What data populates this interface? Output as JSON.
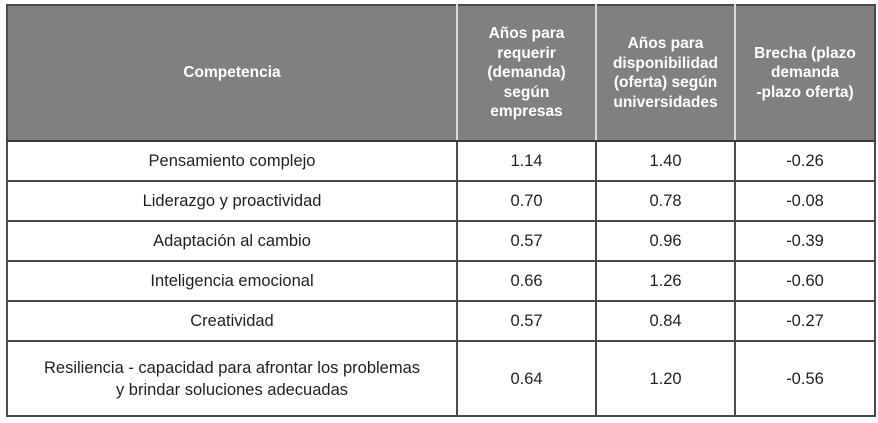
{
  "table": {
    "headers": [
      "Competencia",
      "Años para requerir (demanda) según empresas",
      "Años para disponibilidad (oferta) según universidades",
      "Brecha (plazo demanda -plazo oferta)"
    ],
    "header_lines": [
      [
        "Competencia"
      ],
      [
        "Años para",
        "requerir",
        "(demanda)",
        "según",
        "empresas"
      ],
      [
        "Años para",
        "disponibilidad",
        "(oferta) según",
        "universidades"
      ],
      [
        "Brecha (plazo",
        "demanda",
        "-plazo oferta)"
      ]
    ],
    "rows": [
      {
        "competencia": "Pensamiento complejo",
        "demanda": "1.14",
        "oferta": "1.40",
        "brecha": "-0.26"
      },
      {
        "competencia": "Liderazgo y proactividad",
        "demanda": "0.70",
        "oferta": "0.78",
        "brecha": "-0.08"
      },
      {
        "competencia": "Adaptación al cambio",
        "demanda": "0.57",
        "oferta": "0.96",
        "brecha": "-0.39"
      },
      {
        "competencia": "Inteligencia emocional",
        "demanda": "0.66",
        "oferta": "1.26",
        "brecha": "-0.60"
      },
      {
        "competencia": "Creatividad",
        "demanda": "0.57",
        "oferta": "0.84",
        "brecha": "-0.27"
      },
      {
        "competencia": "Resiliencia - capacidad para afrontar los problemas y brindar soluciones adecuadas",
        "competencia_lines": [
          "Resiliencia - capacidad para afrontar los problemas",
          "y brindar soluciones adecuadas"
        ],
        "demanda": "0.64",
        "oferta": "1.20",
        "brecha": "-0.56"
      }
    ]
  },
  "colors": {
    "header_bg": "#808083",
    "header_text": "#ffffff",
    "border": "#4a4a4c",
    "body_text": "#231f20"
  }
}
